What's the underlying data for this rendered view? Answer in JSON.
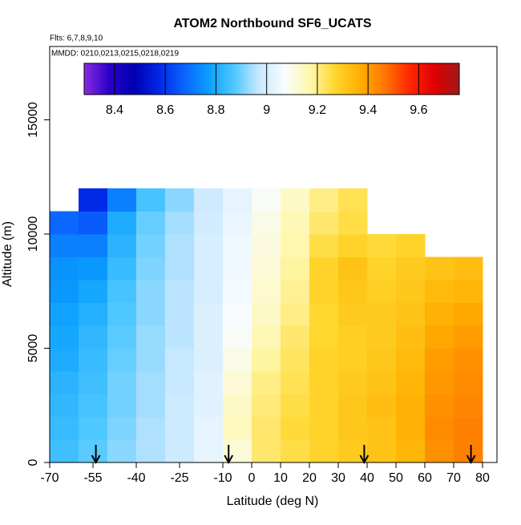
{
  "chart_data": {
    "type": "heatmap",
    "title": "ATOM2 Northbound SF6_UCATS",
    "subtitle": "Flts: 6,7,8,9,10",
    "annotation": "MMDD: 0210,0213,0215,0218,0219",
    "x_label": "Latitude (deg N)",
    "y_label": "Altitude (m)",
    "xlim": [
      -70,
      85
    ],
    "ylim": [
      0,
      18210
    ],
    "xticks": [
      -70,
      -55,
      -40,
      -25,
      -10,
      0,
      10,
      20,
      30,
      40,
      50,
      60,
      70,
      80
    ],
    "yticks": [
      0,
      5000,
      10000,
      15000
    ],
    "x_bins": [
      -70,
      -60,
      -50,
      -40,
      -30,
      -20,
      -10,
      0,
      10,
      20,
      30,
      40,
      50,
      60,
      70,
      80
    ],
    "y_bins": [
      0,
      1000,
      2000,
      3000,
      4000,
      5000,
      6000,
      7000,
      8000,
      9000,
      10000,
      11000,
      12000
    ],
    "values": [
      [
        8.85,
        8.88,
        8.92,
        8.95,
        8.98,
        9.03,
        9.12,
        9.22,
        9.25,
        9.28,
        9.3,
        9.32,
        9.35,
        9.42,
        9.45
      ],
      [
        8.84,
        8.87,
        8.91,
        8.95,
        8.98,
        9.03,
        9.15,
        9.22,
        9.26,
        9.28,
        9.31,
        9.32,
        9.36,
        9.43,
        9.45
      ],
      [
        8.83,
        8.86,
        8.9,
        8.94,
        8.98,
        9.02,
        9.14,
        9.21,
        9.25,
        9.28,
        9.31,
        9.33,
        9.36,
        9.42,
        9.44
      ],
      [
        8.82,
        8.85,
        8.9,
        8.94,
        8.97,
        9.02,
        9.12,
        9.2,
        9.24,
        9.28,
        9.3,
        9.32,
        9.35,
        9.41,
        9.43
      ],
      [
        8.8,
        8.84,
        8.89,
        8.93,
        8.97,
        9.01,
        9.1,
        9.18,
        9.23,
        9.28,
        9.29,
        9.31,
        9.34,
        9.4,
        9.42
      ],
      [
        8.79,
        8.83,
        8.88,
        8.93,
        8.96,
        9.01,
        9.08,
        9.16,
        9.22,
        9.27,
        9.29,
        9.3,
        9.33,
        9.38,
        9.4
      ],
      [
        8.78,
        8.81,
        8.87,
        8.92,
        8.96,
        9.01,
        9.07,
        9.14,
        9.2,
        9.27,
        9.3,
        9.3,
        9.32,
        9.36,
        9.38
      ],
      [
        8.76,
        8.79,
        8.86,
        8.92,
        8.96,
        9.0,
        9.06,
        9.13,
        9.19,
        9.28,
        9.31,
        9.29,
        9.31,
        9.34,
        9.35
      ],
      [
        8.75,
        8.76,
        8.84,
        8.91,
        8.95,
        9.0,
        9.05,
        9.12,
        9.18,
        9.28,
        9.32,
        9.28,
        9.3,
        9.32,
        9.33
      ],
      [
        8.72,
        8.72,
        8.82,
        8.9,
        8.95,
        9.0,
        9.05,
        9.11,
        9.17,
        9.25,
        9.28,
        9.26,
        9.28,
        null,
        null
      ],
      [
        8.68,
        8.66,
        8.8,
        8.89,
        8.94,
        8.99,
        9.04,
        9.1,
        9.16,
        9.22,
        9.25,
        null,
        null,
        null,
        null
      ],
      [
        null,
        8.58,
        8.72,
        8.86,
        8.92,
        8.98,
        9.03,
        9.08,
        9.14,
        9.2,
        9.24,
        null,
        null,
        null,
        null
      ]
    ],
    "arrows": [
      -54,
      -8,
      39,
      76
    ],
    "colorbar_lim": [
      8.28,
      9.76
    ],
    "colorbar_ticks": [
      8.4,
      8.6,
      8.8,
      9.0,
      9.2,
      9.4,
      9.6
    ],
    "colorscale": [
      "#8a2be2",
      "#2a00c8",
      "#0000b4",
      "#0028e6",
      "#0a64ff",
      "#0aa0ff",
      "#50c8ff",
      "#c8e8ff",
      "#f8fcff",
      "#fff8b0",
      "#ffd830",
      "#ffb000",
      "#ff7800",
      "#ff2800",
      "#e00000",
      "#a01818"
    ]
  }
}
